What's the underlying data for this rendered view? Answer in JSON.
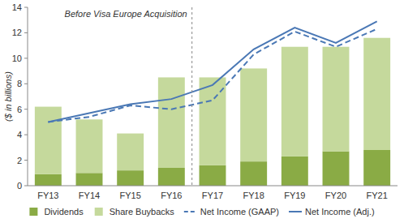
{
  "chart_data": {
    "type": "bar",
    "y_label": "($ in billions)",
    "categories": [
      "FY13",
      "FY14",
      "FY15",
      "FY16",
      "FY17",
      "FY18",
      "FY19",
      "FY20",
      "FY21"
    ],
    "stacked": true,
    "grid": false,
    "legend": "bottom",
    "ylim": [
      0,
      14
    ],
    "yticks": [
      0,
      2,
      4,
      6,
      8,
      10,
      12,
      14
    ],
    "annotations": [
      {
        "text": "Before Visa Europe Acquisition",
        "after": "FY16"
      }
    ],
    "series": [
      {
        "name": "Dividends",
        "type": "bar",
        "color": "#8aab45",
        "values": [
          0.9,
          1.0,
          1.2,
          1.4,
          1.6,
          1.9,
          2.3,
          2.7,
          2.8
        ]
      },
      {
        "name": "Share Buybacks",
        "type": "bar",
        "color": "#c5d99c",
        "values": [
          5.3,
          4.2,
          2.9,
          7.1,
          6.9,
          7.3,
          8.6,
          8.2,
          8.8
        ]
      },
      {
        "name": "Net Income (GAAP)",
        "type": "line",
        "line_style": "dashed",
        "color": "#4a78b5",
        "values": [
          5.0,
          5.4,
          6.3,
          6.0,
          6.7,
          10.3,
          12.1,
          10.9,
          12.3
        ]
      },
      {
        "name": "Net Income (Adj.)",
        "type": "line",
        "line_style": "solid",
        "color": "#4a78b5",
        "values": [
          5.0,
          5.7,
          6.4,
          6.8,
          7.9,
          10.7,
          12.4,
          11.2,
          12.9
        ]
      }
    ]
  }
}
